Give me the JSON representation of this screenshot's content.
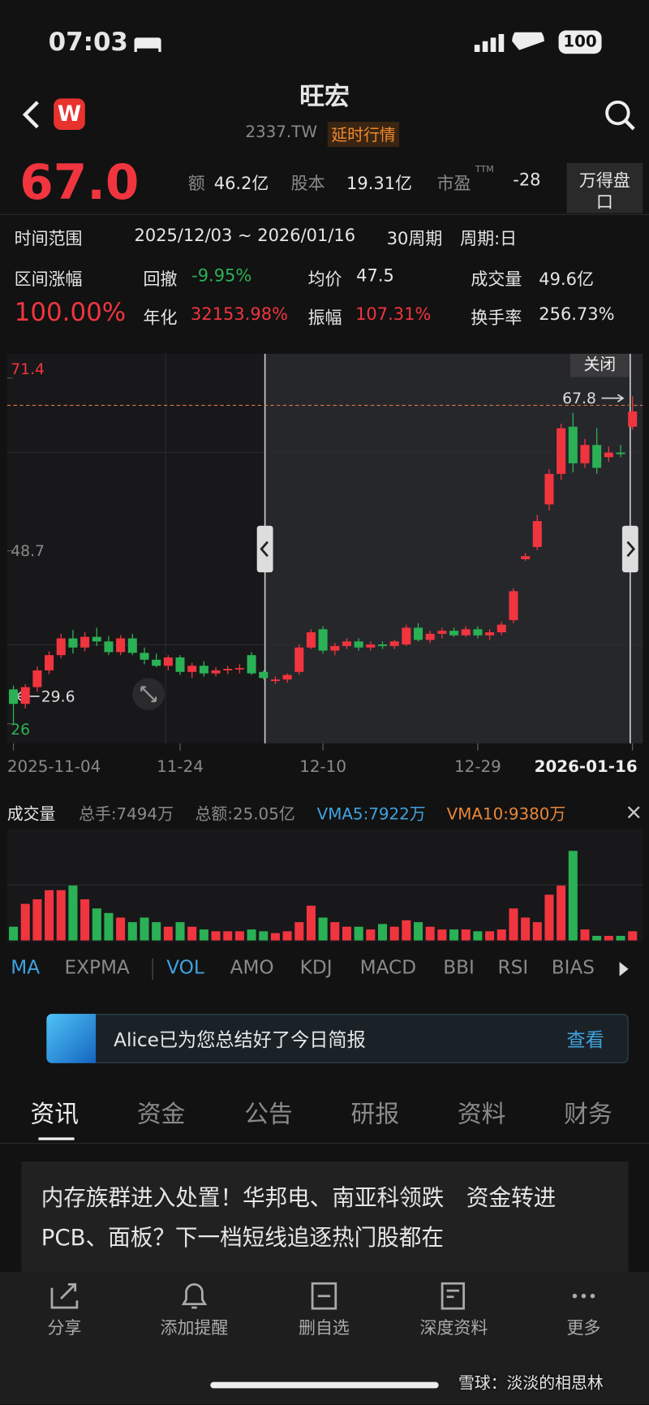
{
  "status": {
    "time": "07:03",
    "battery": "100"
  },
  "header": {
    "title": "旺宏",
    "code": "2337.TW",
    "tag": "延时行情"
  },
  "quote": {
    "price": "67.0",
    "fields": [
      {
        "label": "额",
        "value": "46.2亿"
      },
      {
        "label": "股本",
        "value": "19.31亿"
      },
      {
        "label": "市盈",
        "sup": "TTM",
        "value": "-28"
      }
    ],
    "button": "万得盘口"
  },
  "range": {
    "label": "时间范围",
    "period": "2025/12/03 ~ 2026/01/16",
    "count": "30周期",
    "cycle": "周期:日"
  },
  "stats": {
    "change_label": "区间涨幅",
    "change": "100.00%",
    "drawdown_label": "回撤",
    "drawdown": "-9.95%",
    "annual_label": "年化",
    "annual": "32153.98%",
    "avg_label": "均价",
    "avg": "47.5",
    "amp_label": "振幅",
    "amp": "107.31%",
    "vol_label": "成交量",
    "vol": "49.6亿",
    "turnover_label": "换手率",
    "turnover": "256.73%"
  },
  "chart_close": "关闭",
  "chart_data": [
    {
      "type": "candlestick",
      "categories": [
        "2025-11-04",
        null,
        null,
        null,
        null,
        null,
        null,
        null,
        null,
        null,
        null,
        null,
        null,
        null,
        "11-24",
        null,
        null,
        null,
        null,
        null,
        null,
        null,
        null,
        null,
        null,
        null,
        "12-10",
        null,
        null,
        null,
        null,
        null,
        null,
        null,
        null,
        null,
        null,
        null,
        null,
        "12-29",
        null,
        null,
        null,
        null,
        null,
        null,
        null,
        null,
        null,
        null,
        null,
        null,
        "2026-01-16"
      ],
      "open": [
        30.5,
        28.6,
        30.8,
        33.0,
        35.0,
        37.2,
        36.0,
        37.4,
        36.8,
        35.4,
        37.2,
        35.3,
        34.4,
        33.6,
        34.7,
        32.8,
        33.6,
        32.6,
        33.0,
        33.2,
        35.0,
        32.8,
        31.6,
        31.8,
        32.8,
        36.0,
        38.4,
        35.6,
        36.2,
        36.8,
        36.0,
        36.4,
        36.2,
        36.4,
        38.6,
        37.0,
        37.8,
        38.2,
        37.6,
        38.4,
        37.6,
        38.0,
        39.6,
        47.6,
        49.2,
        54.8,
        58.8,
        65.0,
        60.2,
        62.6,
        61.0,
        61.6,
        65.0
      ],
      "high": [
        31.0,
        31.2,
        33.5,
        35.5,
        37.8,
        38.3,
        38.0,
        38.6,
        37.5,
        37.6,
        37.8,
        36.0,
        35.2,
        35.0,
        35.0,
        34.0,
        34.2,
        33.4,
        33.6,
        33.8,
        35.4,
        33.0,
        32.2,
        32.6,
        36.4,
        38.4,
        38.8,
        36.6,
        37.2,
        37.2,
        36.8,
        36.8,
        37.0,
        39.0,
        39.2,
        38.2,
        38.6,
        38.6,
        38.8,
        38.8,
        38.4,
        39.4,
        43.8,
        48.4,
        53.4,
        59.4,
        65.4,
        66.8,
        63.4,
        64.8,
        62.4,
        62.6,
        69.0
      ],
      "low": [
        26.0,
        28.0,
        30.2,
        32.5,
        34.6,
        35.2,
        35.5,
        36.2,
        35.0,
        35.0,
        35.0,
        33.8,
        33.4,
        33.0,
        32.4,
        32.0,
        32.2,
        32.2,
        32.5,
        32.6,
        32.4,
        31.8,
        31.2,
        31.4,
        32.4,
        35.8,
        35.2,
        35.0,
        35.8,
        35.6,
        35.6,
        35.8,
        35.8,
        36.2,
        36.8,
        36.6,
        37.2,
        37.4,
        37.4,
        37.2,
        37.0,
        37.6,
        39.2,
        47.4,
        48.8,
        54.0,
        58.0,
        59.0,
        59.6,
        58.8,
        60.4,
        61.0,
        64.6
      ],
      "close": [
        28.6,
        30.8,
        33.0,
        35.0,
        37.2,
        36.0,
        37.4,
        36.8,
        35.4,
        37.2,
        35.3,
        34.4,
        33.6,
        34.7,
        32.8,
        33.6,
        32.6,
        33.0,
        33.2,
        33.3,
        32.6,
        32.0,
        31.8,
        32.4,
        36.0,
        38.0,
        35.6,
        36.2,
        36.8,
        36.0,
        36.4,
        36.2,
        36.8,
        38.6,
        37.0,
        37.8,
        38.2,
        37.6,
        38.4,
        37.6,
        38.0,
        39.0,
        43.4,
        48.0,
        52.6,
        58.8,
        64.8,
        60.2,
        62.6,
        59.6,
        61.6,
        61.4,
        67.0
      ],
      "up_color": "#f0353f",
      "down_color": "#2bb155",
      "ylim": [
        26.0,
        71.4
      ],
      "yticks": [
        71.4,
        48.7,
        26.0
      ],
      "annotations": [
        {
          "value": 67.8,
          "label": "67.8"
        },
        {
          "value": 29.6,
          "label": "29.6"
        }
      ]
    },
    {
      "type": "bar",
      "title": "成交量",
      "texts": [
        "总手:7494万",
        "总额:25.05亿",
        "VMA5:7922万",
        "VMA10:9380万"
      ],
      "values": [
        1500,
        4000,
        4500,
        5500,
        5500,
        6000,
        4500,
        3500,
        3000,
        2500,
        2000,
        2500,
        2000,
        1500,
        2000,
        1500,
        1200,
        1000,
        1000,
        1000,
        1200,
        1000,
        800,
        1000,
        2000,
        3800,
        2500,
        2000,
        1500,
        1500,
        1200,
        1800,
        1500,
        2200,
        2000,
        1500,
        1200,
        1200,
        1200,
        1000,
        1000,
        1200,
        3500,
        2500,
        2000,
        5000,
        6000,
        9800,
        1200,
        500,
        500,
        500,
        1000
      ]
    }
  ],
  "indicators": [
    "MA",
    "EXPMA",
    "VOL",
    "AMO",
    "KDJ",
    "MACD",
    "BBI",
    "RSI",
    "BIAS"
  ],
  "banner": {
    "text": "Alice已为您总结好了今日简报",
    "action": "查看"
  },
  "tabs": [
    "资讯",
    "资金",
    "公告",
    "研报",
    "资料",
    "财务"
  ],
  "news": {
    "headline": "内存族群进入处置！华邦电、南亚科领跌　资金转进PCB、面板？下一档短线追逐热门股都在"
  },
  "toolbar": [
    "分享",
    "添加提醒",
    "删自选",
    "深度资料",
    "更多"
  ],
  "watermark": "雪球：淡淡的相思林"
}
